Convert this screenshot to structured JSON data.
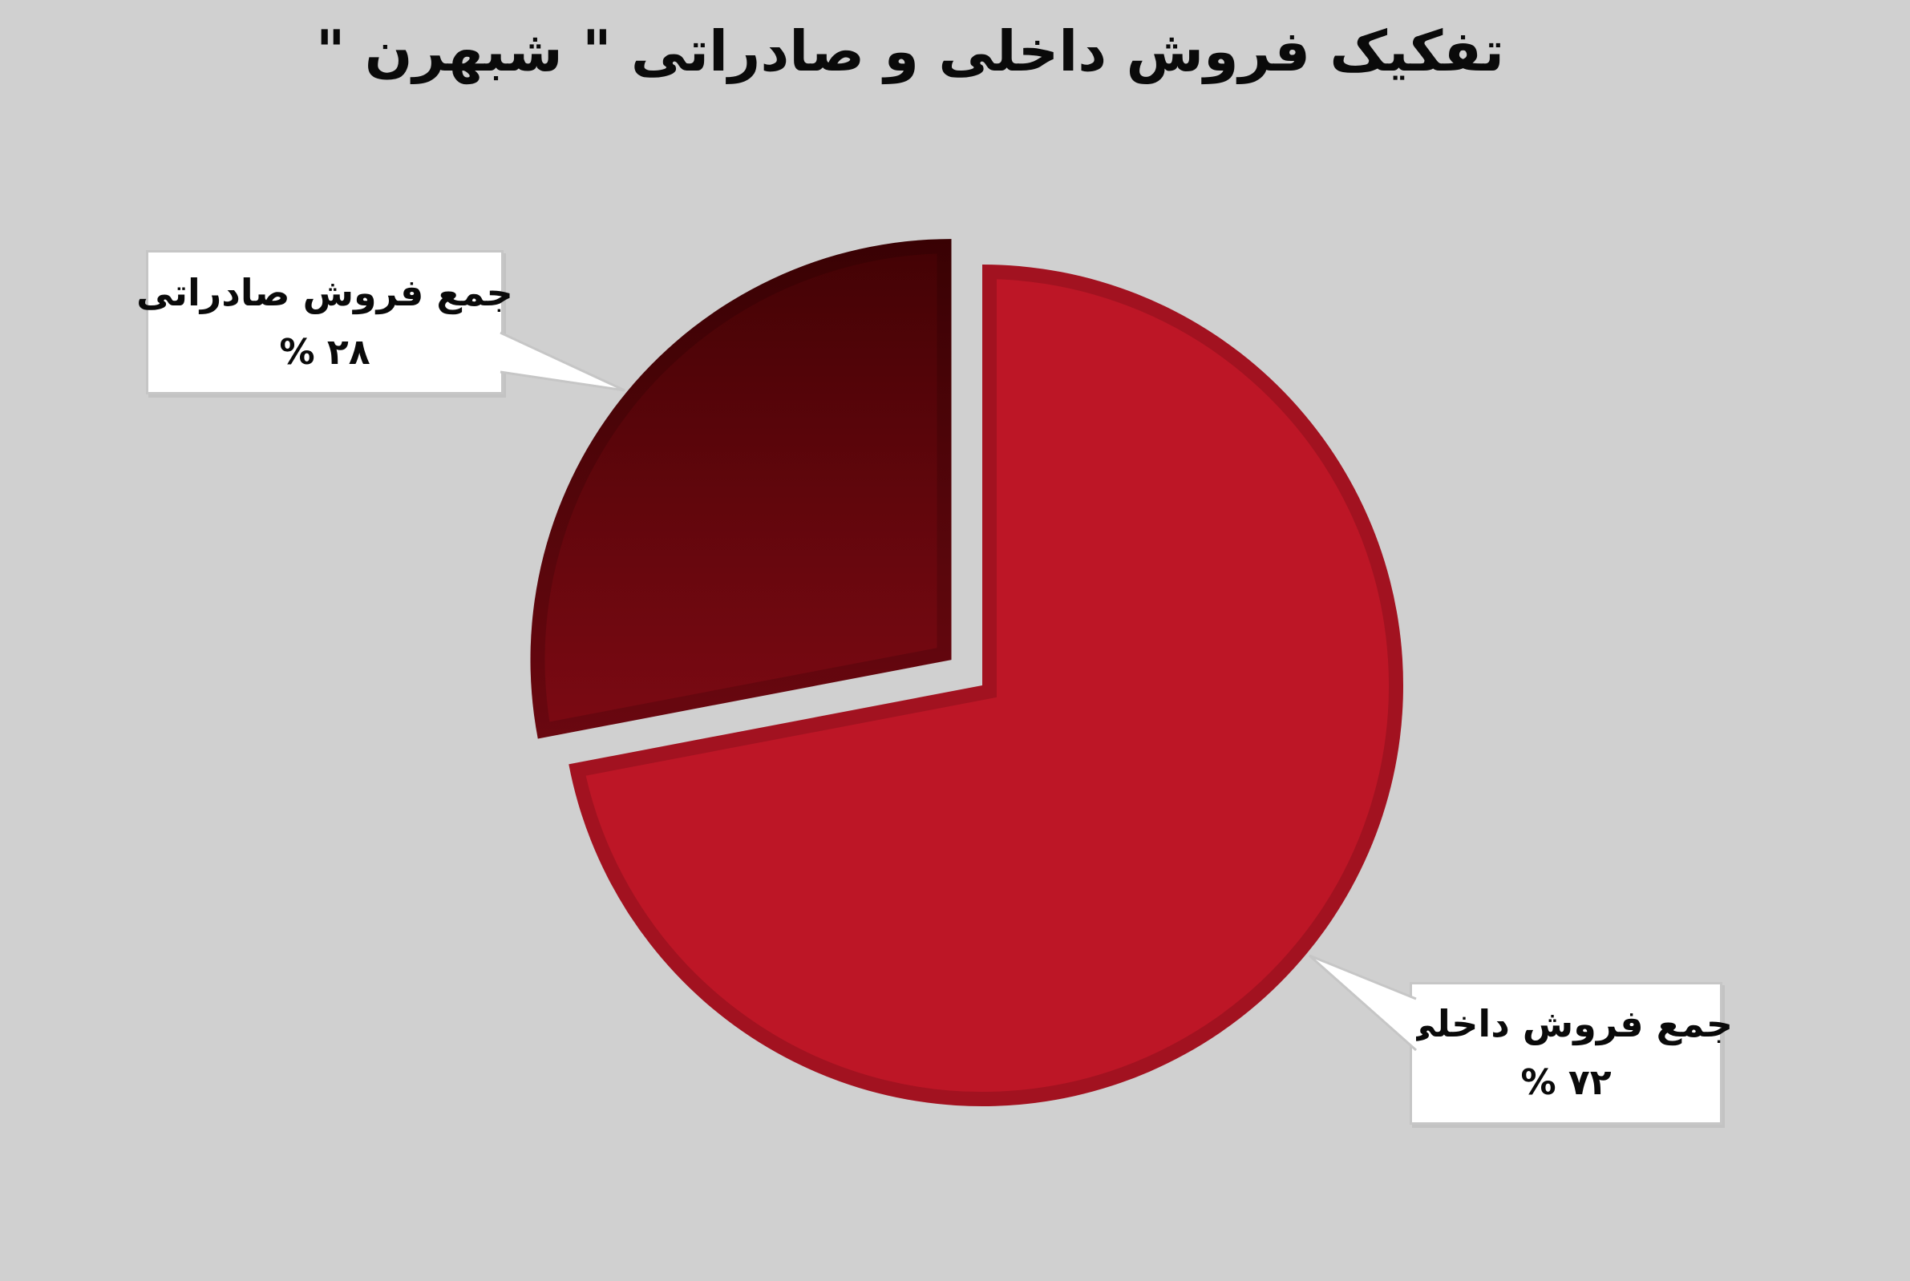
{
  "background_color": "#D0D0D0",
  "title": "تفکیک فروش داخلی و صادراتی \" شبهرن \"",
  "chart_data": {
    "type": "pie",
    "title": "تفکیک فروش داخلی و صادراتی \" شبهرن \"",
    "unit": "%",
    "start_angle_deg": 0,
    "direction": "clockwise",
    "legend": "none",
    "background": "#D0D0D0",
    "rim_color_overlay": "rgba(0,0,0,0.14)",
    "callout_box_color": "#FFFFFF",
    "callout_border_color": "#C6C6C6",
    "slices": [
      {
        "name": "domestic",
        "label": "جمع فروش داخلی",
        "value": 72,
        "percent_display": "% ۷۲",
        "color": "#BD1626",
        "exploded": false
      },
      {
        "name": "export",
        "label": "جمع فروش صادراتی",
        "value": 28,
        "percent_display": "% ۲۸",
        "color": "#5E0409",
        "gradient": [
          "#420204",
          "#800A14"
        ],
        "exploded": true
      }
    ]
  }
}
